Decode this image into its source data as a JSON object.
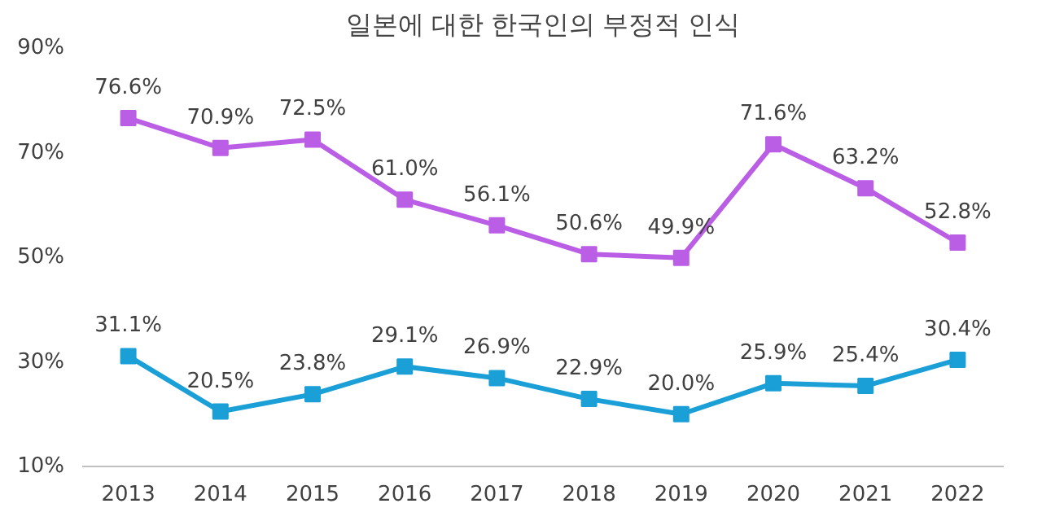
{
  "chart_data": {
    "type": "line",
    "title": "일본에 대한 한국인의 부정적 인식",
    "categories": [
      "2013",
      "2014",
      "2015",
      "2016",
      "2017",
      "2018",
      "2019",
      "2020",
      "2021",
      "2022"
    ],
    "series": [
      {
        "color": "#bb5ee6",
        "values": [
          76.6,
          70.9,
          72.5,
          61.0,
          56.1,
          50.6,
          49.9,
          71.6,
          63.2,
          52.8
        ],
        "value_labels": [
          "76.6%",
          "70.9%",
          "72.5%",
          "61.0%",
          "56.1%",
          "50.6%",
          "49.9%",
          "71.6%",
          "63.2%",
          "52.8%"
        ]
      },
      {
        "color": "#1a9fd6",
        "values": [
          31.1,
          20.5,
          23.8,
          29.1,
          26.9,
          22.9,
          20.0,
          25.9,
          25.4,
          30.4
        ],
        "value_labels": [
          "31.1%",
          "20.5%",
          "23.8%",
          "29.1%",
          "26.9%",
          "22.9%",
          "20.0%",
          "25.9%",
          "25.4%",
          "30.4%"
        ]
      }
    ],
    "ylim": [
      10,
      90
    ],
    "yticks": [
      {
        "value": 10,
        "label": "10%"
      },
      {
        "value": 30,
        "label": "30%"
      },
      {
        "value": 50,
        "label": "50%"
      },
      {
        "value": 70,
        "label": "70%"
      },
      {
        "value": 90,
        "label": "90%"
      }
    ],
    "marker": "square",
    "grid": false
  }
}
